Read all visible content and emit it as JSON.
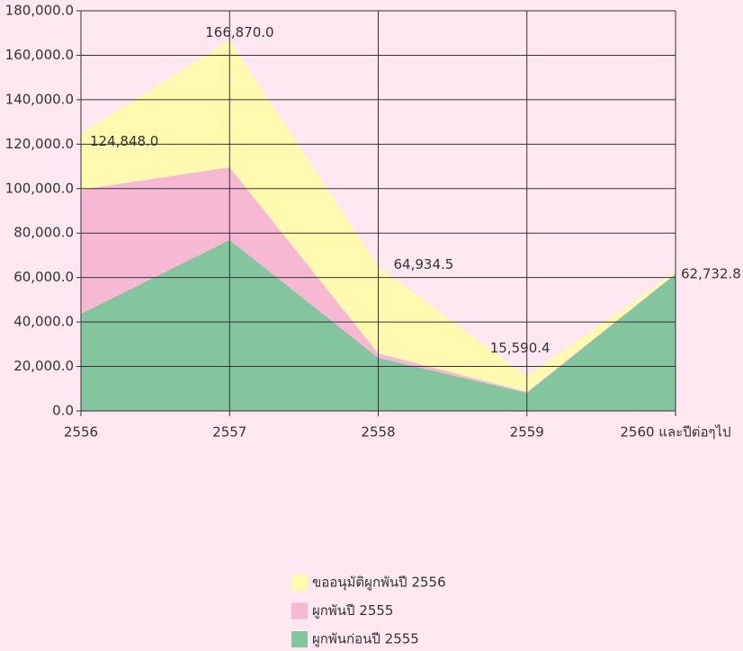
{
  "chart_data": {
    "type": "stacked_area",
    "categories": [
      "2556",
      "2557",
      "2558",
      "2559",
      "2560 และปีต่อๆไป"
    ],
    "series": [
      {
        "name": "ผูกพันก่อนปี 2555",
        "color": "#83c59e",
        "values": [
          43700,
          76900,
          23900,
          8100,
          61500
        ]
      },
      {
        "name": "ผูกพันปี 2555",
        "color": "#f7b8d4",
        "values": [
          55800,
          32700,
          2000,
          400,
          300
        ]
      },
      {
        "name": "ขออนุมัติผูกพันปี 2556",
        "color": "#fffab0",
        "values": [
          25348,
          57270,
          39034.5,
          7090.4,
          932.8
        ]
      }
    ],
    "totals": [
      124848,
      166870,
      64934.5,
      15590.4,
      62732.8
    ],
    "total_labels": [
      "124,848.0",
      "166,870.0",
      "64,934.5",
      "15,590.4",
      "62,732.8"
    ],
    "ylim": [
      0,
      180000
    ],
    "yticks": [
      {
        "value": 0,
        "label": "0.0"
      },
      {
        "value": 20000,
        "label": "20,000.0"
      },
      {
        "value": 40000,
        "label": "40,000.0"
      },
      {
        "value": 60000,
        "label": "60,000.0"
      },
      {
        "value": 80000,
        "label": "80,000.0"
      },
      {
        "value": 100000,
        "label": "100,000.0"
      },
      {
        "value": 120000,
        "label": "120,000.0"
      },
      {
        "value": 140000,
        "label": "140,000.0"
      },
      {
        "value": 160000,
        "label": "160,000.0"
      },
      {
        "value": 180000,
        "label": "180,000.0"
      }
    ],
    "grid": true,
    "legend": "bottom"
  }
}
